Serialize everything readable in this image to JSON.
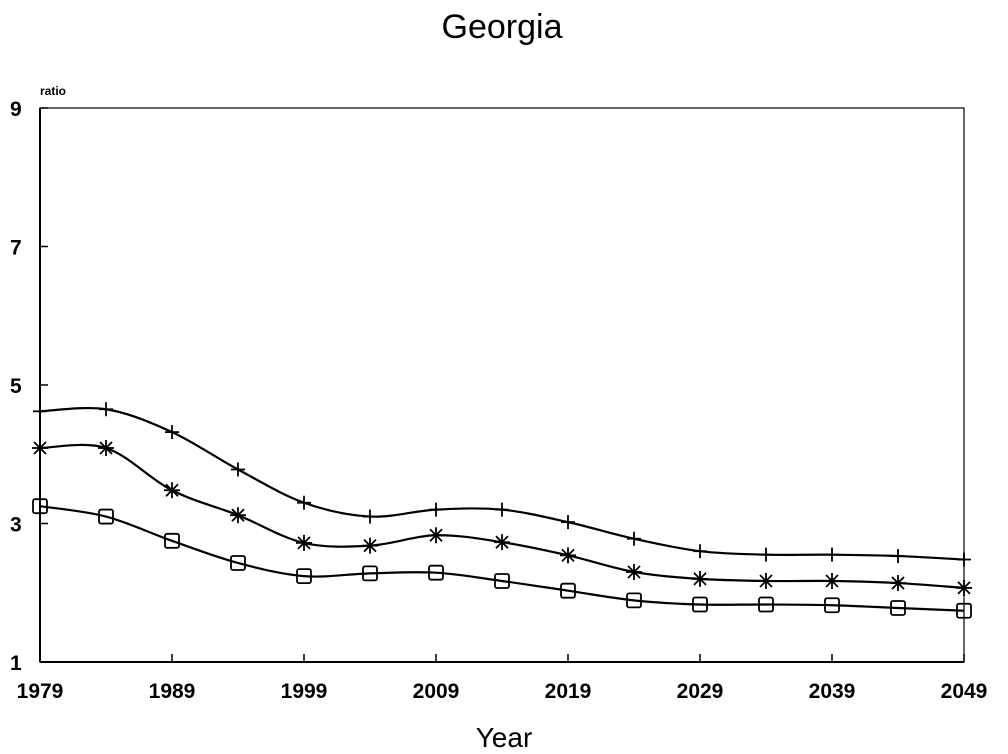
{
  "chart_data": {
    "type": "line",
    "title": "Georgia",
    "xlabel": "Year",
    "ylabel": "ratio",
    "xlim": [
      1979,
      2049
    ],
    "ylim": [
      1,
      9
    ],
    "x_ticks": [
      "1979",
      "1989",
      "1999",
      "2009",
      "2019",
      "2029",
      "2039",
      "2049"
    ],
    "y_ticks": [
      "1",
      "3",
      "5",
      "7",
      "9"
    ],
    "grid": false,
    "x": [
      1979,
      1984,
      1989,
      1994,
      1999,
      2004,
      2009,
      2014,
      2019,
      2024,
      2029,
      2034,
      2039,
      2044,
      2049
    ],
    "series": [
      {
        "marker": "plus",
        "values": [
          4.62,
          4.65,
          4.32,
          3.78,
          3.3,
          3.1,
          3.2,
          3.2,
          3.02,
          2.78,
          2.6,
          2.55,
          2.55,
          2.53,
          2.48
        ]
      },
      {
        "marker": "asterisk",
        "values": [
          4.09,
          4.09,
          3.48,
          3.12,
          2.72,
          2.68,
          2.83,
          2.73,
          2.54,
          2.3,
          2.2,
          2.17,
          2.17,
          2.14,
          2.07
        ]
      },
      {
        "marker": "square",
        "values": [
          3.25,
          3.1,
          2.75,
          2.43,
          2.24,
          2.28,
          2.29,
          2.17,
          2.03,
          1.89,
          1.83,
          1.83,
          1.82,
          1.78,
          1.74
        ]
      }
    ]
  }
}
